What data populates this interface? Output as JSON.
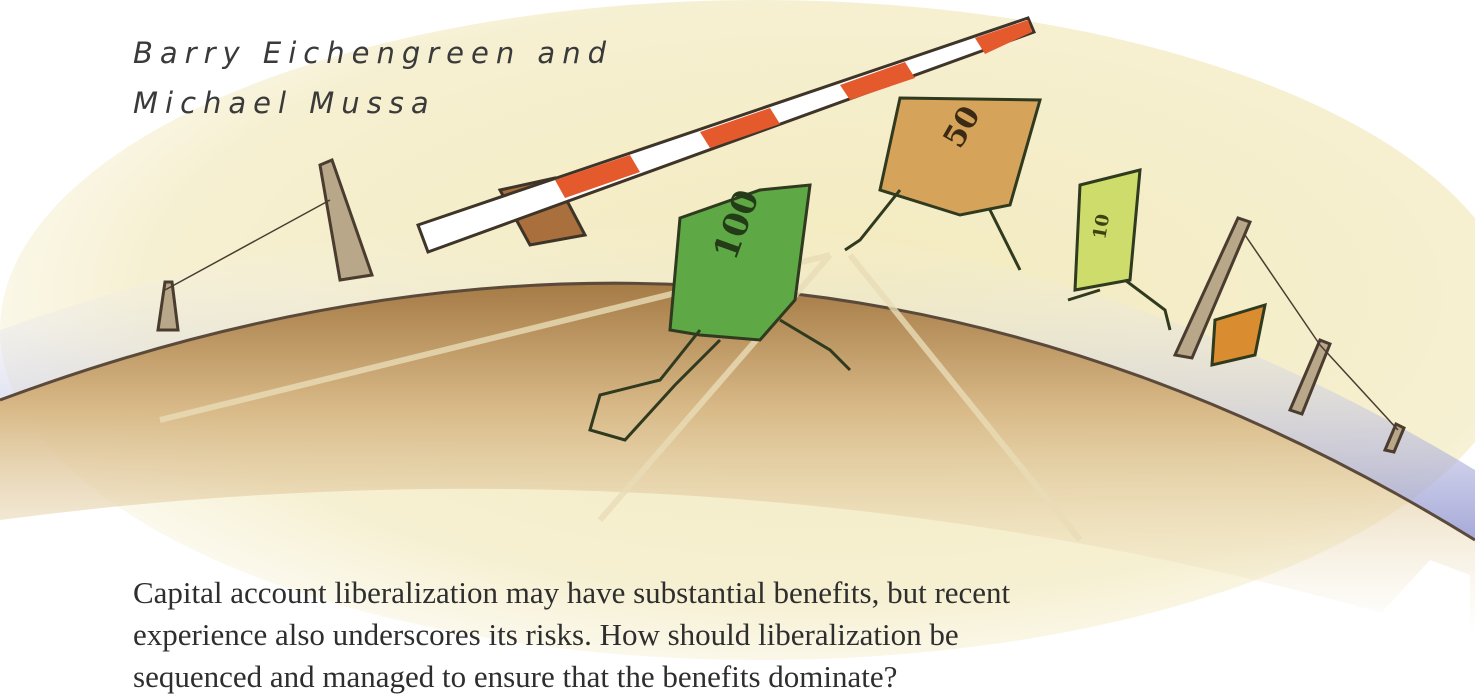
{
  "authors": {
    "lines": [
      "Barry Eichengreen and",
      "Michael Mussa"
    ]
  },
  "illustration": {
    "bills": [
      {
        "label": "100"
      },
      {
        "label": "50"
      },
      {
        "label": "10"
      }
    ]
  },
  "abstract": {
    "lines": [
      "Capital account liberalization may have substantial benefits, but recent",
      "experience also underscores its risks. How should liberalization be",
      "sequenced and managed to ensure that the benefits dominate?"
    ]
  }
}
